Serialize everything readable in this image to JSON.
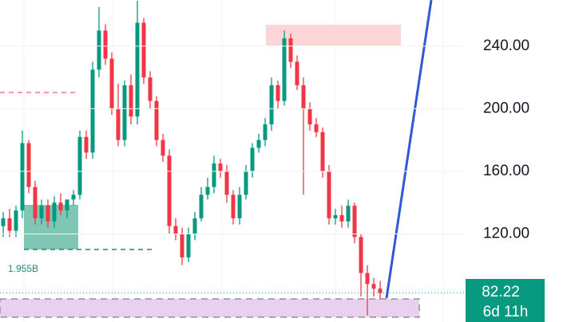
{
  "chart_data": {
    "type": "candlestick",
    "open": [
      125,
      130,
      122,
      135,
      178,
      150,
      130,
      138,
      128,
      140,
      135,
      142,
      145,
      182,
      172,
      225,
      250,
      232,
      200,
      180,
      215,
      195,
      255,
      220,
      205,
      180,
      170,
      125,
      120,
      105,
      120,
      130,
      145,
      150,
      165,
      160,
      145,
      130,
      145,
      160,
      175,
      180,
      190,
      215,
      205,
      245,
      230,
      215,
      200,
      190,
      185,
      160,
      130,
      132,
      128,
      138,
      118,
      95,
      88,
      85
    ],
    "high": [
      134,
      136,
      138,
      186,
      180,
      154,
      142,
      142,
      144,
      146,
      140,
      148,
      186,
      186,
      230,
      265,
      254,
      236,
      216,
      218,
      222,
      269,
      258,
      224,
      208,
      184,
      174,
      130,
      124,
      124,
      134,
      150,
      156,
      170,
      168,
      164,
      148,
      150,
      164,
      178,
      184,
      194,
      220,
      218,
      250,
      248,
      234,
      220,
      204,
      194,
      188,
      164,
      136,
      138,
      142,
      140,
      120,
      100,
      92,
      90
    ],
    "low": [
      118,
      118,
      118,
      130,
      146,
      126,
      126,
      124,
      124,
      132,
      130,
      138,
      142,
      168,
      168,
      220,
      228,
      196,
      176,
      176,
      190,
      190,
      216,
      200,
      176,
      166,
      120,
      116,
      100,
      102,
      116,
      128,
      142,
      146,
      156,
      140,
      126,
      126,
      142,
      156,
      172,
      176,
      186,
      200,
      202,
      226,
      212,
      145,
      186,
      182,
      156,
      126,
      126,
      124,
      124,
      114,
      80,
      68,
      80,
      78
    ],
    "close": [
      130,
      122,
      135,
      178,
      150,
      130,
      138,
      128,
      140,
      135,
      142,
      145,
      182,
      172,
      225,
      250,
      232,
      200,
      180,
      215,
      195,
      255,
      220,
      205,
      180,
      170,
      125,
      120,
      105,
      120,
      130,
      145,
      150,
      165,
      160,
      145,
      130,
      145,
      160,
      175,
      180,
      190,
      215,
      205,
      245,
      230,
      215,
      200,
      190,
      185,
      160,
      130,
      132,
      128,
      138,
      118,
      95,
      88,
      85,
      82.22
    ],
    "up_color": "#089981",
    "down_color": "#f23645",
    "ylim": [
      63.7,
      269.5
    ],
    "yticks": [
      {
        "value": 120,
        "label": "120.00"
      },
      {
        "value": 160,
        "label": "160.00"
      },
      {
        "value": 200,
        "label": "200.00"
      },
      {
        "value": 240,
        "label": "240.00"
      }
    ],
    "grid": true,
    "countdown": "6d 11h",
    "annotation": "1.955B"
  }
}
